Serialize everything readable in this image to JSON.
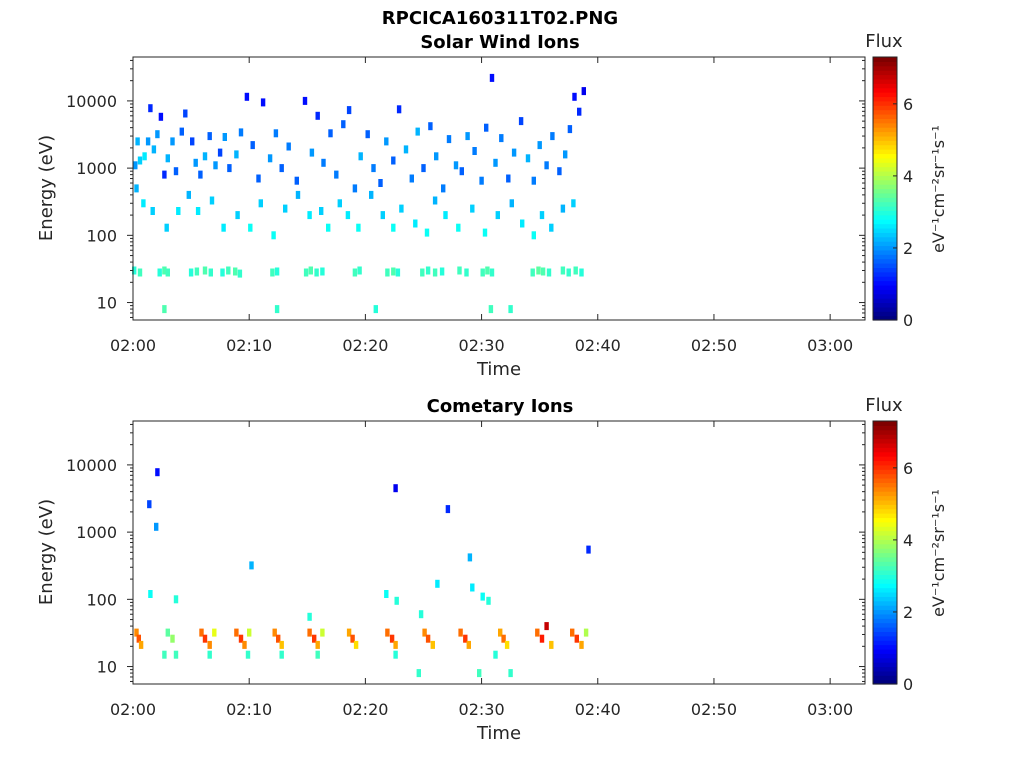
{
  "figure_title": "RPCICA160311T02.PNG",
  "colormap": [
    "#00007f",
    "#0000ff",
    "#007fff",
    "#00ffff",
    "#7fff7f",
    "#ffff00",
    "#ff7f00",
    "#ff0000",
    "#7f0000"
  ],
  "chart_data": [
    {
      "type": "heatmap",
      "title": "Solar Wind Ions",
      "xlabel": "Time",
      "ylabel": "Energy (eV)",
      "xlim": [
        "02:00",
        "03:03"
      ],
      "xticks": [
        "02:00",
        "02:10",
        "02:20",
        "02:30",
        "02:40",
        "02:50",
        "03:00"
      ],
      "ylim": [
        5.5,
        45000
      ],
      "yscale": "log",
      "yticks": [
        "10",
        "100",
        "1000",
        "10000"
      ],
      "colorbar": {
        "label": "Flux",
        "unit": "eV⁻¹cm⁻²sr⁻¹s⁻¹",
        "range": [
          0,
          7.3
        ],
        "ticks": [
          "0",
          "2",
          "4",
          "6"
        ]
      },
      "points": [
        [
          0.2,
          1100,
          2.0
        ],
        [
          0.4,
          2500,
          2.2
        ],
        [
          0.6,
          1300,
          2.4
        ],
        [
          1.0,
          1500,
          2.6
        ],
        [
          1.3,
          2500,
          2.0
        ],
        [
          1.5,
          7800,
          1.2
        ],
        [
          1.8,
          1900,
          2.2
        ],
        [
          2.1,
          3200,
          2.0
        ],
        [
          2.4,
          5800,
          1.0
        ],
        [
          2.7,
          800,
          1.2
        ],
        [
          3.0,
          1400,
          2.2
        ],
        [
          3.4,
          2500,
          2.0
        ],
        [
          3.7,
          900,
          1.6
        ],
        [
          4.2,
          3500,
          1.6
        ],
        [
          4.5,
          6500,
          1.4
        ],
        [
          5.1,
          2500,
          1.4
        ],
        [
          5.4,
          1200,
          2.0
        ],
        [
          5.8,
          800,
          1.6
        ],
        [
          6.2,
          1500,
          2.2
        ],
        [
          6.6,
          3000,
          1.6
        ],
        [
          7.1,
          1100,
          2.0
        ],
        [
          7.5,
          1700,
          1.4
        ],
        [
          7.9,
          2900,
          2.0
        ],
        [
          8.3,
          1000,
          1.6
        ],
        [
          8.9,
          1600,
          2.2
        ],
        [
          9.3,
          3400,
          1.8
        ],
        [
          9.8,
          11500,
          1.0
        ],
        [
          10.3,
          2200,
          1.6
        ],
        [
          10.8,
          700,
          1.6
        ],
        [
          11.2,
          9500,
          1.0
        ],
        [
          11.8,
          1400,
          2.0
        ],
        [
          12.3,
          3300,
          1.8
        ],
        [
          12.8,
          1000,
          1.6
        ],
        [
          13.4,
          2100,
          1.8
        ],
        [
          14.1,
          650,
          1.6
        ],
        [
          14.8,
          10000,
          1.0
        ],
        [
          15.4,
          1700,
          2.0
        ],
        [
          15.9,
          6000,
          1.2
        ],
        [
          16.4,
          1200,
          1.8
        ],
        [
          17.0,
          3300,
          1.6
        ],
        [
          17.5,
          800,
          1.8
        ],
        [
          18.1,
          4500,
          1.6
        ],
        [
          18.6,
          7300,
          1.4
        ],
        [
          19.1,
          500,
          1.8
        ],
        [
          19.6,
          1500,
          2.2
        ],
        [
          20.2,
          3200,
          1.6
        ],
        [
          20.7,
          1000,
          1.8
        ],
        [
          21.3,
          600,
          1.6
        ],
        [
          21.8,
          2500,
          2.0
        ],
        [
          22.4,
          1300,
          1.6
        ],
        [
          22.9,
          7500,
          1.2
        ],
        [
          23.5,
          1900,
          2.2
        ],
        [
          24.0,
          700,
          1.8
        ],
        [
          24.5,
          3500,
          2.2
        ],
        [
          25.0,
          1000,
          1.6
        ],
        [
          25.6,
          4200,
          1.6
        ],
        [
          26.1,
          1500,
          2.0
        ],
        [
          26.7,
          500,
          1.8
        ],
        [
          27.2,
          2700,
          1.8
        ],
        [
          27.8,
          1100,
          2.0
        ],
        [
          28.3,
          900,
          1.6
        ],
        [
          28.8,
          3000,
          2.0
        ],
        [
          29.4,
          1800,
          1.8
        ],
        [
          30.0,
          650,
          1.8
        ],
        [
          30.4,
          4000,
          1.6
        ],
        [
          30.9,
          22000,
          1.0
        ],
        [
          31.2,
          1200,
          2.0
        ],
        [
          31.7,
          2800,
          1.8
        ],
        [
          32.3,
          700,
          1.6
        ],
        [
          32.8,
          1700,
          2.0
        ],
        [
          33.4,
          5000,
          1.4
        ],
        [
          34.0,
          1400,
          2.2
        ],
        [
          34.5,
          650,
          1.8
        ],
        [
          35.0,
          2200,
          2.0
        ],
        [
          35.6,
          1100,
          1.8
        ],
        [
          36.1,
          3000,
          1.8
        ],
        [
          36.7,
          900,
          1.6
        ],
        [
          37.2,
          1600,
          2.0
        ],
        [
          37.6,
          3800,
          1.6
        ],
        [
          38.0,
          11500,
          1.0
        ],
        [
          38.4,
          6900,
          1.2
        ],
        [
          38.8,
          14000,
          0.8
        ],
        [
          0.3,
          500,
          2.2
        ],
        [
          0.9,
          300,
          2.6
        ],
        [
          1.7,
          230,
          2.4
        ],
        [
          2.9,
          130,
          2.4
        ],
        [
          3.9,
          230,
          2.6
        ],
        [
          4.8,
          400,
          2.2
        ],
        [
          5.6,
          230,
          2.6
        ],
        [
          6.8,
          330,
          2.4
        ],
        [
          7.8,
          130,
          2.6
        ],
        [
          9.0,
          200,
          2.4
        ],
        [
          10.1,
          130,
          2.8
        ],
        [
          11.0,
          300,
          2.4
        ],
        [
          12.1,
          100,
          2.8
        ],
        [
          13.1,
          250,
          2.4
        ],
        [
          14.2,
          400,
          2.2
        ],
        [
          15.2,
          200,
          2.6
        ],
        [
          16.2,
          230,
          2.4
        ],
        [
          16.8,
          130,
          2.8
        ],
        [
          17.8,
          300,
          2.4
        ],
        [
          18.5,
          200,
          2.6
        ],
        [
          19.4,
          130,
          2.8
        ],
        [
          20.5,
          400,
          2.2
        ],
        [
          21.5,
          200,
          2.4
        ],
        [
          22.4,
          130,
          2.8
        ],
        [
          23.1,
          250,
          2.4
        ],
        [
          24.3,
          150,
          2.6
        ],
        [
          25.3,
          110,
          2.8
        ],
        [
          26.0,
          330,
          2.2
        ],
        [
          26.9,
          200,
          2.6
        ],
        [
          28.0,
          130,
          2.8
        ],
        [
          29.2,
          250,
          2.4
        ],
        [
          30.3,
          110,
          2.8
        ],
        [
          31.4,
          200,
          2.4
        ],
        [
          32.6,
          300,
          2.2
        ],
        [
          33.5,
          150,
          2.6
        ],
        [
          34.5,
          100,
          2.8
        ],
        [
          35.2,
          200,
          2.4
        ],
        [
          36.0,
          130,
          2.4
        ],
        [
          37.0,
          250,
          2.2
        ],
        [
          37.9,
          300,
          2.4
        ],
        [
          0.1,
          30,
          3.0
        ],
        [
          0.6,
          28,
          3.2
        ],
        [
          2.3,
          28,
          3.0
        ],
        [
          2.7,
          30,
          3.3
        ],
        [
          3.0,
          28,
          3.2
        ],
        [
          5.0,
          28,
          3.0
        ],
        [
          5.5,
          29,
          3.2
        ],
        [
          6.2,
          30,
          3.3
        ],
        [
          6.7,
          28,
          3.1
        ],
        [
          7.7,
          28,
          3.0
        ],
        [
          8.2,
          30,
          3.2
        ],
        [
          8.8,
          29,
          3.3
        ],
        [
          9.2,
          27,
          3.1
        ],
        [
          12.0,
          28,
          3.2
        ],
        [
          12.4,
          29,
          3.0
        ],
        [
          14.9,
          28,
          3.2
        ],
        [
          15.3,
          30,
          3.3
        ],
        [
          15.8,
          28,
          3.1
        ],
        [
          16.3,
          29,
          3.0
        ],
        [
          19.1,
          28,
          3.2
        ],
        [
          19.5,
          30,
          3.1
        ],
        [
          21.9,
          28,
          3.2
        ],
        [
          22.4,
          29,
          3.3
        ],
        [
          22.8,
          28,
          3.0
        ],
        [
          24.9,
          28,
          3.2
        ],
        [
          25.4,
          30,
          3.1
        ],
        [
          26.0,
          28,
          3.2
        ],
        [
          26.6,
          29,
          3.0
        ],
        [
          28.1,
          30,
          3.2
        ],
        [
          28.7,
          28,
          3.1
        ],
        [
          30.1,
          28,
          3.2
        ],
        [
          30.5,
          30,
          3.3
        ],
        [
          30.9,
          28,
          3.1
        ],
        [
          34.4,
          28,
          3.2
        ],
        [
          34.9,
          30,
          3.4
        ],
        [
          35.3,
          29,
          3.3
        ],
        [
          35.8,
          28,
          3.1
        ],
        [
          37.0,
          30,
          3.2
        ],
        [
          37.5,
          28,
          3.1
        ],
        [
          38.1,
          30,
          3.2
        ],
        [
          38.6,
          28,
          3.0
        ],
        [
          2.7,
          8,
          3.3
        ],
        [
          12.4,
          8,
          3.1
        ],
        [
          20.9,
          8,
          3.0
        ],
        [
          30.8,
          8,
          3.2
        ],
        [
          32.5,
          8,
          3.1
        ]
      ]
    },
    {
      "type": "heatmap",
      "title": "Cometary Ions",
      "xlabel": "Time",
      "ylabel": "Energy (eV)",
      "xlim": [
        "02:00",
        "03:03"
      ],
      "xticks": [
        "02:00",
        "02:10",
        "02:20",
        "02:30",
        "02:40",
        "02:50",
        "03:00"
      ],
      "ylim": [
        5.5,
        45000
      ],
      "yscale": "log",
      "yticks": [
        "10",
        "100",
        "1000",
        "10000"
      ],
      "colorbar": {
        "label": "Flux",
        "unit": "eV⁻¹cm⁻²sr⁻¹s⁻¹",
        "range": [
          0,
          7.3
        ],
        "ticks": [
          "0",
          "2",
          "4",
          "6"
        ]
      },
      "points": [
        [
          2.1,
          7800,
          1.0
        ],
        [
          1.4,
          2600,
          1.4
        ],
        [
          2.0,
          1200,
          2.0
        ],
        [
          10.2,
          320,
          2.2
        ],
        [
          22.6,
          4500,
          0.8
        ],
        [
          27.1,
          2200,
          1.2
        ],
        [
          29.0,
          420,
          2.2
        ],
        [
          39.2,
          550,
          1.2
        ],
        [
          1.5,
          120,
          2.8
        ],
        [
          3.7,
          100,
          3.0
        ],
        [
          21.8,
          120,
          2.8
        ],
        [
          22.7,
          95,
          3.0
        ],
        [
          26.2,
          170,
          2.6
        ],
        [
          24.8,
          60,
          3.0
        ],
        [
          29.2,
          150,
          2.6
        ],
        [
          30.1,
          110,
          2.8
        ],
        [
          30.6,
          95,
          3.0
        ],
        [
          0.3,
          32,
          5.4
        ],
        [
          0.5,
          26,
          5.8
        ],
        [
          0.7,
          21,
          5.2
        ],
        [
          3.0,
          32,
          3.4
        ],
        [
          3.4,
          26,
          3.8
        ],
        [
          5.9,
          32,
          5.6
        ],
        [
          6.2,
          26,
          6.0
        ],
        [
          6.6,
          21,
          5.4
        ],
        [
          7.0,
          32,
          4.4
        ],
        [
          8.9,
          32,
          5.6
        ],
        [
          9.3,
          26,
          6.0
        ],
        [
          9.6,
          21,
          5.4
        ],
        [
          10.0,
          32,
          4.2
        ],
        [
          12.2,
          32,
          5.4
        ],
        [
          12.5,
          26,
          5.8
        ],
        [
          12.8,
          21,
          5.0
        ],
        [
          15.2,
          32,
          5.6
        ],
        [
          15.6,
          26,
          6.0
        ],
        [
          15.9,
          21,
          5.2
        ],
        [
          16.3,
          32,
          4.2
        ],
        [
          18.6,
          32,
          5.2
        ],
        [
          18.9,
          26,
          5.8
        ],
        [
          19.2,
          21,
          4.8
        ],
        [
          21.9,
          32,
          5.6
        ],
        [
          22.3,
          26,
          6.0
        ],
        [
          22.6,
          21,
          5.2
        ],
        [
          25.1,
          32,
          5.4
        ],
        [
          25.4,
          26,
          5.8
        ],
        [
          25.8,
          21,
          5.0
        ],
        [
          28.2,
          32,
          5.6
        ],
        [
          28.6,
          26,
          6.0
        ],
        [
          28.9,
          21,
          5.2
        ],
        [
          31.6,
          32,
          5.2
        ],
        [
          31.9,
          26,
          5.6
        ],
        [
          32.2,
          21,
          4.8
        ],
        [
          34.8,
          32,
          5.6
        ],
        [
          35.2,
          26,
          6.2
        ],
        [
          35.6,
          40,
          6.8
        ],
        [
          36.0,
          21,
          5.0
        ],
        [
          37.8,
          32,
          5.6
        ],
        [
          38.2,
          26,
          6.0
        ],
        [
          38.6,
          21,
          5.2
        ],
        [
          39.0,
          32,
          4.0
        ],
        [
          2.7,
          15,
          3.2
        ],
        [
          3.7,
          15,
          3.2
        ],
        [
          6.6,
          15,
          3.1
        ],
        [
          9.9,
          15,
          3.1
        ],
        [
          12.8,
          15,
          3.1
        ],
        [
          15.2,
          55,
          3.0
        ],
        [
          15.9,
          15,
          3.2
        ],
        [
          22.6,
          15,
          3.0
        ],
        [
          24.6,
          8,
          3.1
        ],
        [
          29.8,
          8,
          3.2
        ],
        [
          31.2,
          15,
          3.0
        ],
        [
          32.5,
          8,
          3.1
        ]
      ]
    }
  ]
}
